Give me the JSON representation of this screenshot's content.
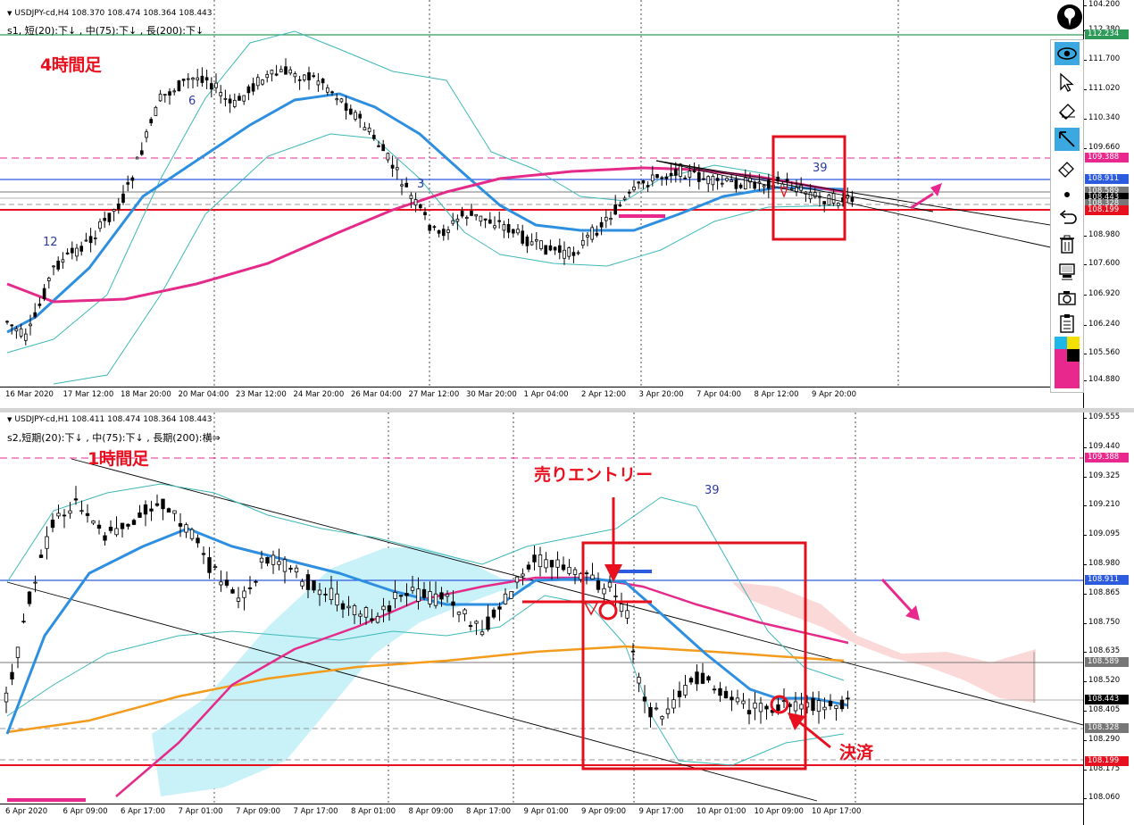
{
  "top": {
    "symbol_line": "USDJPY-cd,H4  108.370 108.474 108.364 108.443",
    "indicator_line": "s1,  短(20):下↓  , 中(75):下↓  , 長(200):下↓",
    "timeframe_label": "4時間足",
    "wave_labels": {
      "w12": "12",
      "w6": "6",
      "w3": "3",
      "w39": "39"
    },
    "price_ticks": [
      "112.380",
      "111.700",
      "111.020",
      "110.340",
      "109.660",
      "108.980",
      "107.600",
      "106.920",
      "106.240",
      "105.560",
      "104.880",
      "104.200"
    ],
    "price_tags": {
      "green": "112.234",
      "magenta_dash": "109.388",
      "blue": "108.911",
      "gray1": "108.589",
      "gray2": "108.443",
      "gray3": "108.328",
      "red": "108.199"
    },
    "time_ticks": [
      "16 Mar 2020",
      "17 Mar 12:00",
      "18 Mar 20:00",
      "20 Mar 04:00",
      "23 Mar 12:00",
      "24 Mar 20:00",
      "26 Mar 04:00",
      "27 Mar 12:00",
      "30 Mar 20:00",
      "1 Apr 04:00",
      "2 Apr 12:00",
      "3 Apr 20:00",
      "7 Apr 04:00",
      "8 Apr 12:00",
      "9 Apr 20:00"
    ]
  },
  "bottom": {
    "symbol_line": "USDJPY-cd,H1  108.411 108.474 108.364 108.443",
    "indicator_line": "s2,短期(20):下↓  , 中(75):下↓  , 長期(200):横⇒",
    "timeframe_label": "1時間足",
    "entry_label": "売りエントリー",
    "exit_label": "決済",
    "wave_label": "39",
    "price_ticks": [
      "109.555",
      "109.440",
      "109.325",
      "109.210",
      "109.095",
      "108.980",
      "108.865",
      "108.750",
      "108.635",
      "108.520",
      "108.405",
      "108.290",
      "108.175",
      "108.060"
    ],
    "price_tags": {
      "magenta_dash": "109.388",
      "blue": "108.911",
      "gray1": "108.589",
      "gray2": "108.443",
      "gray3": "108.328",
      "red": "108.199"
    },
    "time_ticks": [
      "6 Apr 2020",
      "6 Apr 09:00",
      "6 Apr 17:00",
      "7 Apr 01:00",
      "7 Apr 09:00",
      "7 Apr 17:00",
      "8 Apr 01:00",
      "8 Apr 09:00",
      "8 Apr 17:00",
      "9 Apr 01:00",
      "9 Apr 09:00",
      "9 Apr 17:00",
      "10 Apr 01:00",
      "10 Apr 09:00",
      "10 Apr 17:00"
    ]
  },
  "toolbar": {
    "items": [
      "logo-icon",
      "eye-icon",
      "cursor-icon",
      "eraser-icon",
      "arrow-diagonal-icon",
      "eraser-alt-icon",
      "dot-icon",
      "undo-icon",
      "trash-icon",
      "template-icon",
      "camera-icon",
      "clipboard-icon",
      "color-palette-icon"
    ]
  },
  "colors": {
    "ma_short": "#2e8fe0",
    "ma_mid": "#e52b8a",
    "ma_long": "#f39b1c",
    "bollinger": "#3fb8b8",
    "frame": "#e0101c",
    "annotation_pink": "#e8288c",
    "ichimoku_cloud_up": "#c8f2f8",
    "ichimoku_cloud_down": "#fbd9d9"
  }
}
